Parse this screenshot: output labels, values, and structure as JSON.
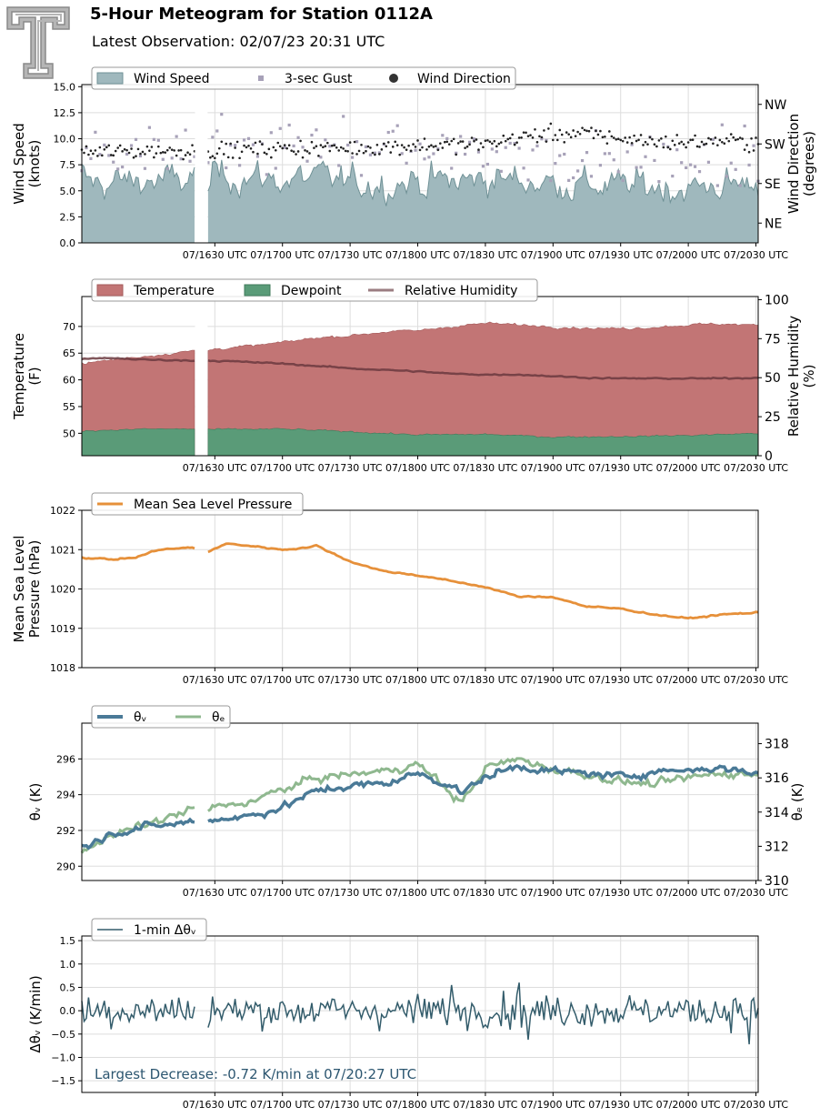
{
  "header": {
    "title": "5-Hour Meteogram for Station 0112A",
    "subtitle": "Latest Observation: 02/07/23 20:31 UTC",
    "logo_name": "texas-tech-double-t-logo"
  },
  "colors": {
    "wind_fill": "#9fb8bd",
    "wind_line": "#6f9196",
    "gust": "#a7a1b8",
    "direction": "#222222",
    "temperature": "#c27575",
    "dewpoint": "#5a9b78",
    "rh": "#6b3a3f",
    "mslp": "#e6903a",
    "theta_v": "#4a7a97",
    "theta_e": "#8fb88f",
    "dtheta": "#335c6b",
    "grid": "#dddddd",
    "annotation": "#2c5670"
  },
  "chart_data": [
    {
      "id": "wind",
      "type": "area",
      "x_tick_labels": [
        "07/1630 UTC",
        "07/1700 UTC",
        "07/1730 UTC",
        "07/1800 UTC",
        "07/1830 UTC",
        "07/1900 UTC",
        "07/1930 UTC",
        "07/2000 UTC",
        "07/2030 UTC"
      ],
      "xlim": [
        "15:31",
        "20:31"
      ],
      "ylabel": "Wind Speed\n(knots)",
      "ylim": [
        0,
        15.2
      ],
      "y_ticks": [
        0.0,
        2.5,
        5.0,
        7.5,
        10.0,
        12.5,
        15.0
      ],
      "y_tick_labels": [
        "0.0",
        "2.5",
        "5.0",
        "7.5",
        "10.0",
        "12.5",
        "15.0"
      ],
      "y2label": "Wind Direction\n(degrees)",
      "y2lim": [
        0,
        360
      ],
      "y2_ticks": [
        45,
        135,
        225,
        315
      ],
      "y2_tick_labels": [
        "NE",
        "SE",
        "SW",
        "NW"
      ],
      "legend": [
        "Wind Speed",
        "3-sec Gust",
        "Wind Direction"
      ],
      "legend_loc": "top-left",
      "gap": [
        "16:21",
        "16:27"
      ],
      "series": [
        {
          "name": "Wind Speed",
          "type": "area",
          "anchors_x": [
            "15:31",
            "15:45",
            "16:00",
            "16:15",
            "16:20",
            "16:27",
            "16:45",
            "17:00",
            "17:15",
            "17:30",
            "17:45",
            "18:00",
            "18:15",
            "18:30",
            "18:45",
            "19:00",
            "19:15",
            "19:30",
            "19:45",
            "20:00",
            "20:15",
            "20:31"
          ],
          "anchors_y": [
            5.5,
            5.8,
            6.0,
            5.9,
            6.2,
            6.8,
            6.3,
            6.0,
            6.2,
            5.8,
            5.7,
            6.0,
            5.8,
            6.2,
            6.0,
            5.8,
            5.6,
            5.4,
            5.5,
            5.2,
            5.6,
            5.8
          ],
          "noise": 2.2,
          "min": 1.2,
          "max": 9.4
        },
        {
          "name": "3-sec Gust",
          "type": "scatter",
          "anchors_x": [
            "15:31",
            "16:00",
            "16:30",
            "17:00",
            "17:30",
            "18:00",
            "18:30",
            "19:00",
            "19:30",
            "20:00",
            "20:31"
          ],
          "anchors_y": [
            8.5,
            8.6,
            8.9,
            8.8,
            8.9,
            8.6,
            8.7,
            8.5,
            8.3,
            8.0,
            8.2
          ],
          "noise": 1.9,
          "min": 5.5,
          "max": 13.2
        },
        {
          "name": "Wind Direction",
          "type": "scatter",
          "axis": "right",
          "anchors_x": [
            "15:31",
            "16:00",
            "16:30",
            "17:00",
            "17:30",
            "18:00",
            "18:15",
            "18:30",
            "18:45",
            "19:00",
            "19:15",
            "19:30",
            "19:45",
            "20:00",
            "20:15",
            "20:31"
          ],
          "anchors_y": [
            205,
            210,
            210,
            215,
            215,
            222,
            222,
            225,
            240,
            248,
            248,
            238,
            230,
            228,
            232,
            228
          ],
          "noise": 13,
          "min": 160,
          "max": 275
        }
      ]
    },
    {
      "id": "temperature",
      "type": "area",
      "x_tick_labels": [
        "07/1630 UTC",
        "07/1700 UTC",
        "07/1730 UTC",
        "07/1800 UTC",
        "07/1830 UTC",
        "07/1900 UTC",
        "07/1930 UTC",
        "07/2000 UTC",
        "07/2030 UTC"
      ],
      "ylabel": "Temperature\n(F)",
      "ylim": [
        45.8,
        75.6
      ],
      "y_ticks": [
        50,
        55,
        60,
        65,
        70
      ],
      "y_tick_labels": [
        "50",
        "55",
        "60",
        "65",
        "70"
      ],
      "y2label": "Relative Humidity\n(%)",
      "y2lim": [
        0,
        102
      ],
      "y2_ticks": [
        0,
        25,
        50,
        75,
        100
      ],
      "y2_tick_labels": [
        "0",
        "25",
        "50",
        "75",
        "100"
      ],
      "legend": [
        "Temperature",
        "Dewpoint",
        "Relative Humidity"
      ],
      "legend_loc": "top-left",
      "gap": [
        "16:21",
        "16:27"
      ],
      "series": [
        {
          "name": "Temperature",
          "type": "area",
          "anchors_x": [
            "15:31",
            "15:45",
            "16:00",
            "16:20",
            "16:27",
            "16:45",
            "17:00",
            "17:15",
            "17:30",
            "17:45",
            "18:00",
            "18:15",
            "18:30",
            "18:45",
            "19:00",
            "19:15",
            "19:30",
            "19:45",
            "20:00",
            "20:15",
            "20:31"
          ],
          "anchors_y": [
            63.0,
            63.8,
            64.5,
            65.4,
            65.7,
            66.3,
            67.0,
            67.9,
            68.3,
            69.0,
            69.2,
            70.0,
            70.6,
            70.3,
            70.0,
            69.7,
            69.6,
            69.9,
            70.3,
            70.5,
            70.2
          ],
          "noise": 0.35
        },
        {
          "name": "Dewpoint",
          "type": "area",
          "anchors_x": [
            "15:31",
            "16:00",
            "16:20",
            "16:27",
            "17:00",
            "17:30",
            "18:00",
            "18:30",
            "19:00",
            "19:30",
            "20:00",
            "20:31"
          ],
          "anchors_y": [
            50.5,
            50.8,
            50.8,
            50.7,
            50.8,
            50.3,
            49.7,
            49.8,
            49.3,
            49.4,
            49.6,
            50.0
          ],
          "noise": 0.22
        },
        {
          "name": "Relative Humidity",
          "type": "line",
          "axis": "right",
          "anchors_x": [
            "15:31",
            "15:45",
            "16:00",
            "16:20",
            "16:27",
            "16:45",
            "17:00",
            "17:15",
            "17:30",
            "17:45",
            "18:00",
            "18:15",
            "18:30",
            "18:45",
            "19:00",
            "19:15",
            "19:30",
            "19:45",
            "20:00",
            "20:15",
            "20:31"
          ],
          "anchors_y": [
            62,
            62.5,
            61.5,
            61,
            61,
            60,
            59,
            57.5,
            56,
            55,
            54,
            52.5,
            52,
            52,
            51,
            50,
            49.5,
            49.5,
            49.5,
            49.5,
            50
          ],
          "noise": 0.55
        }
      ]
    },
    {
      "id": "pressure",
      "type": "line",
      "x_tick_labels": [
        "07/1630 UTC",
        "07/1700 UTC",
        "07/1730 UTC",
        "07/1800 UTC",
        "07/1830 UTC",
        "07/1900 UTC",
        "07/1930 UTC",
        "07/2000 UTC",
        "07/2030 UTC"
      ],
      "ylabel": "Mean Sea Level\nPressure (hPa)",
      "ylim": [
        1018,
        1022
      ],
      "y_ticks": [
        1018,
        1019,
        1020,
        1021,
        1022
      ],
      "y_tick_labels": [
        "1018",
        "1019",
        "1020",
        "1021",
        "1022"
      ],
      "legend": [
        "Mean Sea Level Pressure"
      ],
      "legend_loc": "top-left",
      "gap": [
        "16:21",
        "16:27"
      ],
      "series": [
        {
          "name": "Mean Sea Level Pressure",
          "type": "line",
          "anchors_x": [
            "15:31",
            "15:45",
            "15:55",
            "16:05",
            "16:20",
            "16:27",
            "16:35",
            "16:45",
            "17:00",
            "17:10",
            "17:15",
            "17:30",
            "17:45",
            "18:00",
            "18:15",
            "18:30",
            "18:45",
            "19:00",
            "19:15",
            "19:30",
            "19:45",
            "20:00",
            "20:15",
            "20:31"
          ],
          "anchors_y": [
            1020.8,
            1020.75,
            1020.8,
            1021.0,
            1021.05,
            1020.95,
            1021.15,
            1021.1,
            1021.0,
            1021.05,
            1021.1,
            1020.7,
            1020.45,
            1020.35,
            1020.2,
            1020.05,
            1019.8,
            1019.8,
            1019.55,
            1019.5,
            1019.35,
            1019.25,
            1019.35,
            1019.4
          ],
          "noise": 0.025
        }
      ]
    },
    {
      "id": "theta",
      "type": "line",
      "x_tick_labels": [
        "07/1630 UTC",
        "07/1700 UTC",
        "07/1730 UTC",
        "07/1800 UTC",
        "07/1830 UTC",
        "07/1900 UTC",
        "07/1930 UTC",
        "07/2000 UTC",
        "07/2030 UTC"
      ],
      "ylabel": "θᵥ (K)",
      "ylim": [
        289.2,
        298.0
      ],
      "y_ticks": [
        290,
        292,
        294,
        296
      ],
      "y_tick_labels": [
        "290",
        "292",
        "294",
        "296"
      ],
      "y2label": "θₑ (K)",
      "y2lim": [
        310,
        319.2
      ],
      "y2_ticks": [
        310,
        312,
        314,
        316,
        318
      ],
      "y2_tick_labels": [
        "310",
        "312",
        "314",
        "316",
        "318"
      ],
      "legend": [
        "θᵥ",
        "θₑ"
      ],
      "legend_loc": "top-left",
      "gap": [
        "16:21",
        "16:27"
      ],
      "series": [
        {
          "name": "θᵥ",
          "type": "line",
          "anchors_x": [
            "15:31",
            "15:45",
            "16:00",
            "16:15",
            "16:20",
            "16:27",
            "16:45",
            "17:00",
            "17:15",
            "17:30",
            "17:45",
            "18:00",
            "18:15",
            "18:20",
            "18:30",
            "18:45",
            "19:00",
            "19:15",
            "19:30",
            "19:45",
            "20:00",
            "20:15",
            "20:31"
          ],
          "anchors_y": [
            291.0,
            291.9,
            292.2,
            292.4,
            292.5,
            292.6,
            292.8,
            293.3,
            294.2,
            294.5,
            294.6,
            295.2,
            294.5,
            294.1,
            295.0,
            295.6,
            295.3,
            295.2,
            295.0,
            295.3,
            295.4,
            295.5,
            295.2
          ],
          "noise": 0.28
        },
        {
          "name": "θₑ",
          "type": "line",
          "axis": "right",
          "anchors_x": [
            "15:31",
            "15:45",
            "16:00",
            "16:15",
            "16:20",
            "16:27",
            "16:45",
            "17:00",
            "17:15",
            "17:30",
            "17:45",
            "18:00",
            "18:10",
            "18:15",
            "18:20",
            "18:30",
            "18:45",
            "19:00",
            "19:15",
            "19:30",
            "19:45",
            "20:00",
            "20:15",
            "20:31"
          ],
          "anchors_y": [
            311.9,
            312.6,
            313.3,
            313.9,
            314.2,
            314.2,
            314.6,
            315.3,
            316.0,
            316.2,
            316.4,
            316.8,
            315.7,
            315.0,
            314.6,
            316.6,
            317.1,
            316.5,
            316.2,
            315.8,
            315.6,
            316.0,
            316.3,
            316.2
          ],
          "noise": 0.32
        }
      ]
    },
    {
      "id": "dtheta",
      "type": "line",
      "x_tick_labels": [
        "07/1630 UTC",
        "07/1700 UTC",
        "07/1730 UTC",
        "07/1800 UTC",
        "07/1830 UTC",
        "07/1900 UTC",
        "07/1930 UTC",
        "07/2000 UTC",
        "07/2030 UTC"
      ],
      "ylabel": "Δθᵥ (K/min)",
      "ylim": [
        -1.75,
        1.6
      ],
      "y_ticks": [
        -1.5,
        -1.0,
        -0.5,
        0.0,
        0.5,
        1.0,
        1.5
      ],
      "y_tick_labels": [
        "−1.5",
        "−1.0",
        "−0.5",
        "0.0",
        "0.5",
        "1.0",
        "1.5"
      ],
      "legend": [
        "1-min Δθᵥ"
      ],
      "legend_loc": "top-left",
      "gap": [
        "16:21",
        "16:27"
      ],
      "annotation": "Largest Decrease: -0.72 K/min at 07/20:27 UTC",
      "series": [
        {
          "name": "1-min Δθᵥ",
          "type": "line",
          "mean": 0.0,
          "noise": 0.24,
          "extremes": [
            {
              "x": "18:15",
              "y": 0.55
            },
            {
              "x": "18:45",
              "y": 0.6
            },
            {
              "x": "18:49",
              "y": -0.62
            },
            {
              "x": "20:27",
              "y": -0.72
            }
          ]
        }
      ]
    }
  ]
}
